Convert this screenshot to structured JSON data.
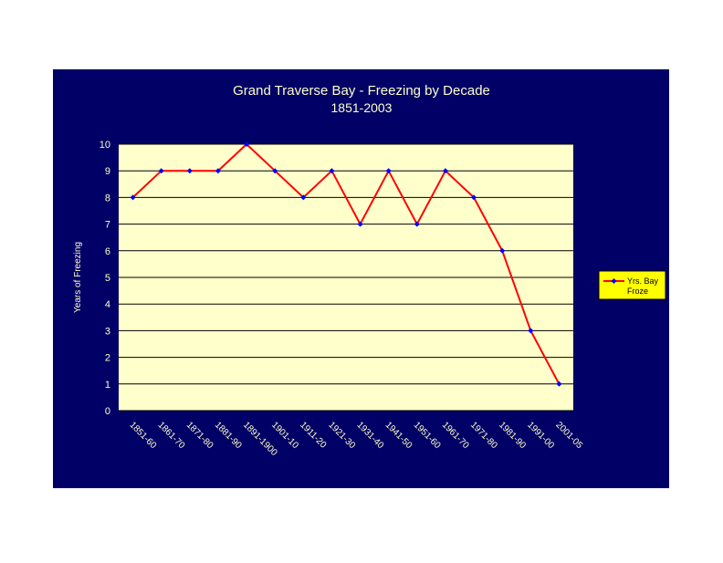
{
  "colors": {
    "chart_background": "#000066",
    "plot_background": "#ffffcc",
    "line": "#ff0000",
    "marker": "#0000ff",
    "text": "#ffffcc",
    "legend_background": "#ffff00",
    "legend_text": "#000000",
    "gridline": "#000000"
  },
  "chart_data": {
    "type": "line",
    "title": "Grand Traverse Bay - Freezing by Decade",
    "subtitle": "1851-2003",
    "xlabel": "",
    "ylabel": "Years of Freezing",
    "ylim": [
      0,
      10
    ],
    "yticks": [
      "0",
      "1",
      "2",
      "3",
      "4",
      "5",
      "6",
      "7",
      "8",
      "9",
      "10"
    ],
    "grid": true,
    "legend_position": "right",
    "categories": [
      "1851-60",
      "1861-70",
      "1871-80",
      "1881-90",
      "1891-1900",
      "1901-10",
      "1911-20",
      "1921-30",
      "1931-40",
      "1941-50",
      "1951-60",
      "1961-70",
      "1971-80",
      "1981-90",
      "1991-00",
      "2001-05"
    ],
    "series": [
      {
        "name": "Yrs. Bay Froze",
        "values": [
          8,
          9,
          9,
          9,
          10,
          9,
          8,
          9,
          7,
          9,
          7,
          9,
          8,
          6,
          3,
          1
        ]
      }
    ]
  }
}
